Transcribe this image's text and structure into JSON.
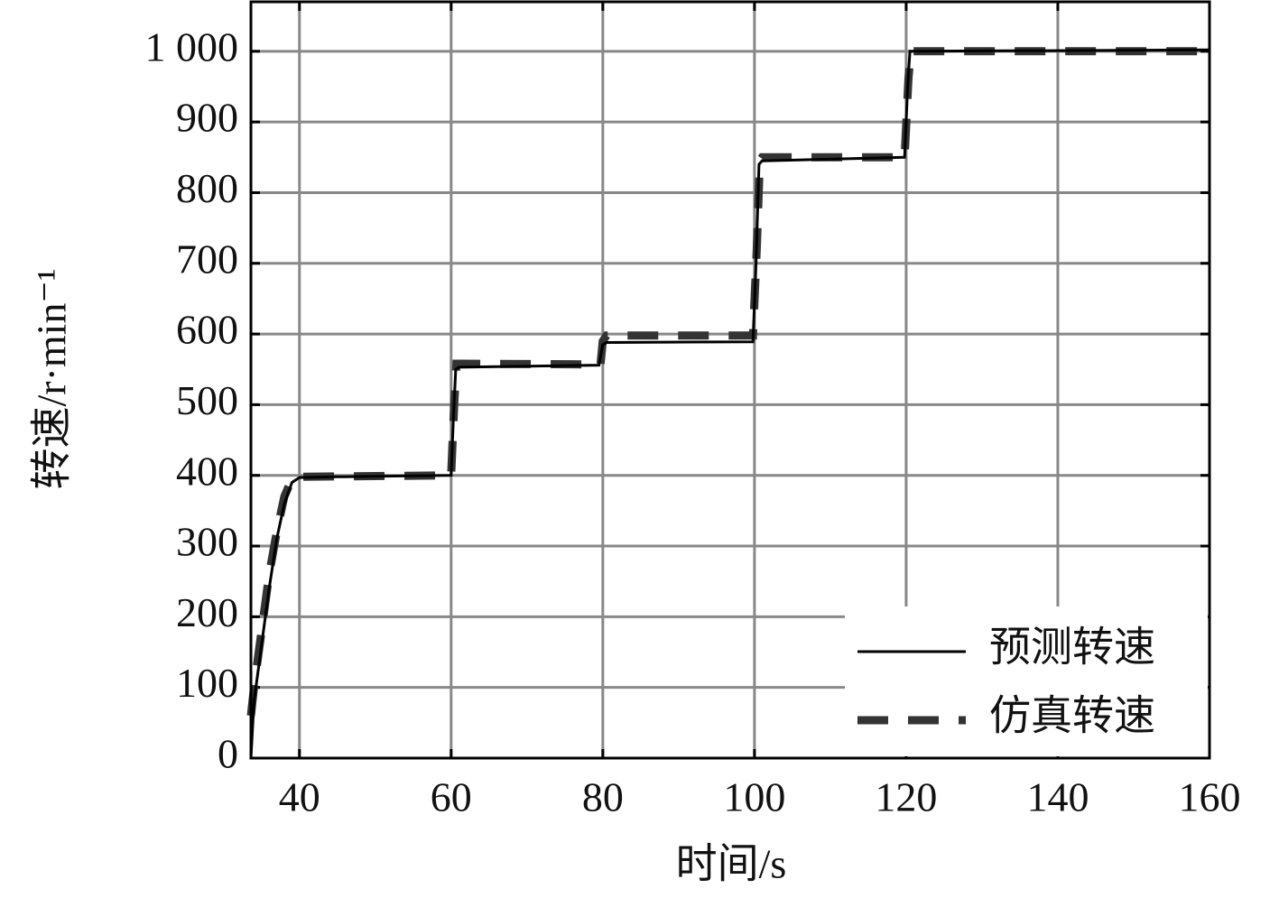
{
  "chart_data": {
    "type": "line",
    "x_label": "时间/s",
    "y_label": "转速/r·min⁻¹",
    "xlim": [
      33.6,
      160
    ],
    "xticks": [
      40,
      60,
      80,
      100,
      120,
      140,
      160
    ],
    "ylim": [
      0,
      1070
    ],
    "yticks": [
      0,
      100,
      200,
      300,
      400,
      500,
      600,
      700,
      800,
      900,
      {
        "value": 1000,
        "label": "1 000"
      }
    ],
    "grid": true,
    "legend": "lower right",
    "series": [
      {
        "name": "预测转速",
        "color": "#000000",
        "line_style": "solid",
        "x": [
          33.6,
          34,
          35,
          36,
          37,
          38,
          39,
          40,
          45,
          60,
          60.3,
          60.6,
          61,
          79.5,
          80,
          80.5,
          99.8,
          100.2,
          100.6,
          101,
          119.8,
          120.2,
          120.5,
          160
        ],
        "values": [
          0,
          80,
          160,
          240,
          310,
          360,
          390,
          397,
          398,
          400,
          480,
          550,
          553,
          556,
          585,
          588,
          589,
          700,
          840,
          845,
          850,
          950,
          1000,
          1002
        ]
      },
      {
        "name": "仿真转速",
        "color": "#333333",
        "line_style": "dashed",
        "x": [
          33.6,
          34,
          35,
          36,
          37,
          38,
          39,
          40,
          60,
          60.4,
          60.7,
          79.7,
          80,
          80.5,
          99.8,
          100.3,
          100.7,
          101,
          119.8,
          120.3,
          120.6,
          160
        ],
        "values": [
          60,
          100,
          180,
          260,
          320,
          370,
          395,
          398,
          400,
          500,
          558,
          557,
          590,
          598,
          598,
          720,
          845,
          850,
          850,
          960,
          1000,
          1000
        ]
      }
    ]
  }
}
